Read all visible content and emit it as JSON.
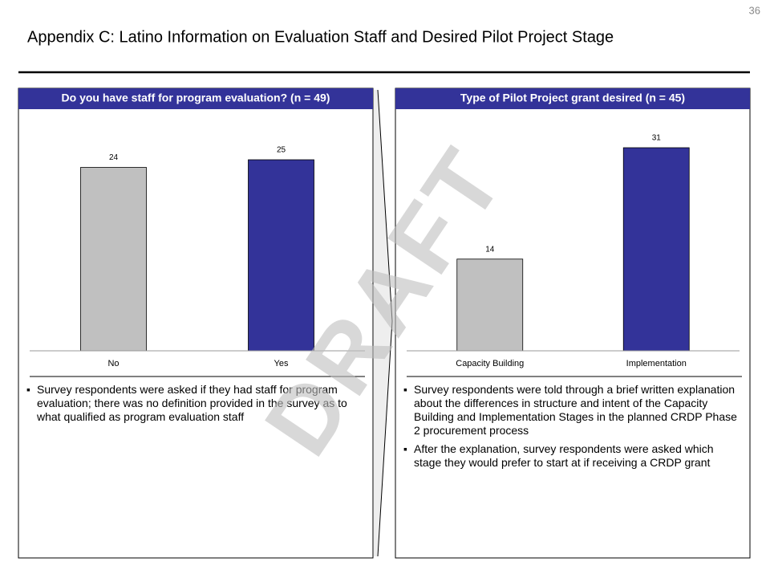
{
  "page_number": "36",
  "title": "Appendix C: Latino Information on Evaluation Staff and Desired Pilot Project Stage",
  "watermark": "DRAFT",
  "chart_data": [
    {
      "type": "bar",
      "title": "Do you have staff for program evaluation? (n = 49)",
      "categories": [
        "No",
        "Yes"
      ],
      "values": [
        24,
        25
      ],
      "colors": [
        "#c0c0c0",
        "#333399"
      ]
    },
    {
      "type": "bar",
      "title": "Type of Pilot Project grant desired (n = 45)",
      "categories": [
        "Capacity Building",
        "Implementation"
      ],
      "values": [
        14,
        31
      ],
      "colors": [
        "#c0c0c0",
        "#333399"
      ]
    }
  ],
  "notes": [
    [
      "Survey respondents were asked if they had staff for program evaluation; there was no definition provided in the survey as to what qualified as program evaluation staff"
    ],
    [
      "Survey respondents were told through a brief written explanation about the differences in structure and intent of the Capacity Building and Implementation Stages in the planned CRDP Phase 2 procurement process",
      "After the explanation, survey respondents were asked which stage they would prefer to start at if receiving a CRDP grant"
    ]
  ]
}
